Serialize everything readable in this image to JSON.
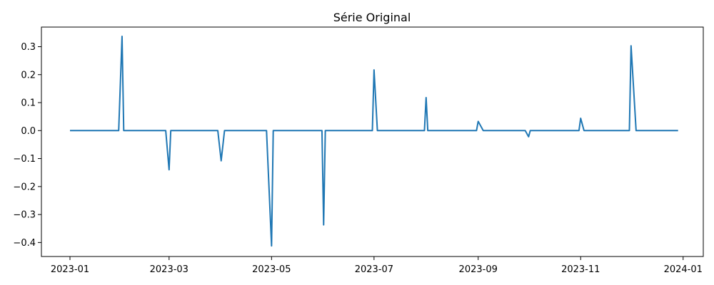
{
  "chart_data": {
    "type": "line",
    "title": "Série Original",
    "xlabel": "",
    "ylabel": "",
    "xlim": [
      "2022-12-15",
      "2024-01-13"
    ],
    "ylim": [
      -0.45,
      0.37
    ],
    "grid": false,
    "legend": "none",
    "colors": {
      "line": "#1f77b4",
      "axis": "#000000",
      "background": "#ffffff"
    },
    "x_ticks": [
      "2023-01",
      "2023-03",
      "2023-05",
      "2023-07",
      "2023-09",
      "2023-11",
      "2024-01"
    ],
    "y_ticks": [
      "0.3",
      "0.2",
      "0.1",
      "0.0",
      "−0.1",
      "−0.2",
      "−0.3",
      "−0.4"
    ],
    "series": [
      {
        "points": [
          {
            "x": "2023-01-01",
            "y": 0.0
          },
          {
            "x": "2023-01-30",
            "y": 0.0
          },
          {
            "x": "2023-02-01",
            "y": 0.337
          },
          {
            "x": "2023-02-02",
            "y": 0.0
          },
          {
            "x": "2023-02-27",
            "y": 0.0
          },
          {
            "x": "2023-03-01",
            "y": -0.14
          },
          {
            "x": "2023-03-02",
            "y": 0.0
          },
          {
            "x": "2023-03-30",
            "y": 0.0
          },
          {
            "x": "2023-04-01",
            "y": -0.108
          },
          {
            "x": "2023-04-03",
            "y": 0.0
          },
          {
            "x": "2023-04-28",
            "y": 0.0
          },
          {
            "x": "2023-05-01",
            "y": -0.412
          },
          {
            "x": "2023-05-02",
            "y": 0.0
          },
          {
            "x": "2023-05-31",
            "y": 0.0
          },
          {
            "x": "2023-06-01",
            "y": -0.337
          },
          {
            "x": "2023-06-02",
            "y": 0.0
          },
          {
            "x": "2023-06-30",
            "y": 0.0
          },
          {
            "x": "2023-07-01",
            "y": 0.217
          },
          {
            "x": "2023-07-03",
            "y": 0.0
          },
          {
            "x": "2023-07-31",
            "y": 0.0
          },
          {
            "x": "2023-08-01",
            "y": 0.118
          },
          {
            "x": "2023-08-02",
            "y": 0.0
          },
          {
            "x": "2023-08-31",
            "y": 0.0
          },
          {
            "x": "2023-09-01",
            "y": 0.033
          },
          {
            "x": "2023-09-04",
            "y": 0.0
          },
          {
            "x": "2023-09-29",
            "y": 0.0
          },
          {
            "x": "2023-10-01",
            "y": -0.022
          },
          {
            "x": "2023-10-02",
            "y": 0.0
          },
          {
            "x": "2023-10-31",
            "y": 0.0
          },
          {
            "x": "2023-11-01",
            "y": 0.044
          },
          {
            "x": "2023-11-03",
            "y": 0.0
          },
          {
            "x": "2023-11-30",
            "y": 0.0
          },
          {
            "x": "2023-12-01",
            "y": 0.303
          },
          {
            "x": "2023-12-04",
            "y": 0.0
          },
          {
            "x": "2023-12-29",
            "y": 0.0
          }
        ]
      }
    ]
  }
}
